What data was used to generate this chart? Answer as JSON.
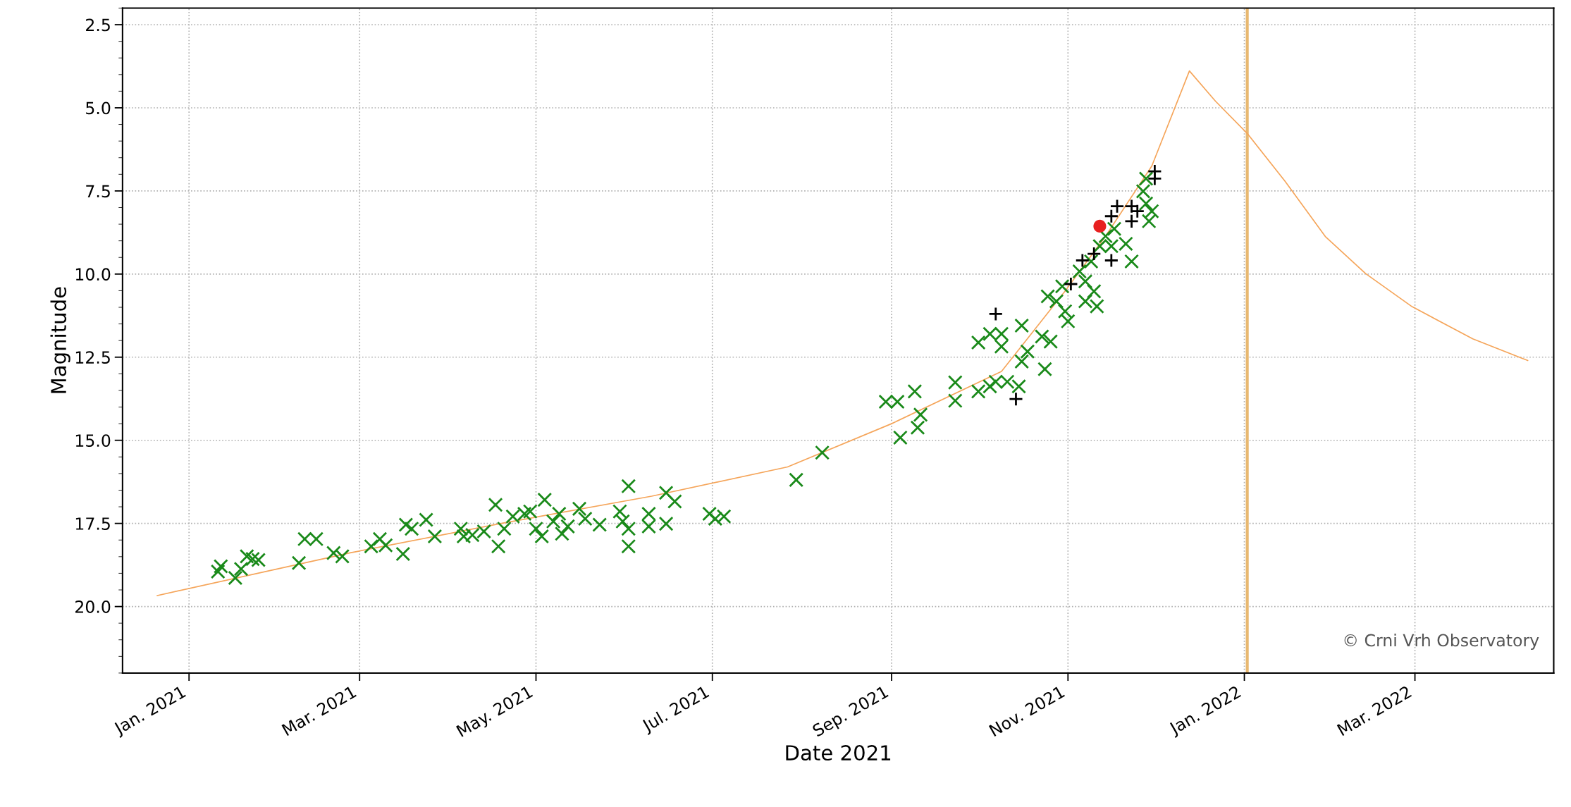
{
  "chart_data": {
    "type": "scatter",
    "xlabel": "Date 2021",
    "ylabel": "Magnitude",
    "xlim": [
      "2020-12-09",
      "2022-04-18"
    ],
    "xticks": [
      {
        "value": "2021-01-01",
        "label": "Jan. 2021"
      },
      {
        "value": "2021-03-01",
        "label": "Mar. 2021"
      },
      {
        "value": "2021-05-01",
        "label": "May. 2021"
      },
      {
        "value": "2021-07-01",
        "label": "Jul. 2021"
      },
      {
        "value": "2021-09-01",
        "label": "Sep. 2021"
      },
      {
        "value": "2021-11-01",
        "label": "Nov. 2021"
      },
      {
        "value": "2022-01-01",
        "label": "Jan. 2022"
      },
      {
        "value": "2022-03-01",
        "label": "Mar. 2022"
      }
    ],
    "ylim": [
      22,
      2
    ],
    "yticks": [
      2.5,
      {
        "value": 5,
        "label": "5.0"
      },
      7.5,
      {
        "value": 10,
        "label": "10.0"
      },
      12.5,
      {
        "value": 15,
        "label": "15.0"
      },
      17.5,
      {
        "value": 20,
        "label": "20.0"
      }
    ],
    "grid": true,
    "series": [
      {
        "type": "line",
        "color": "#f5a55a",
        "marker": "none",
        "line_style": "solid",
        "x": [
          "2020-12-21",
          "2021-02-26",
          "2021-04-19",
          "2021-06-10",
          "2021-07-27",
          "2021-09-01",
          "2021-10-09",
          "2021-10-31",
          "2021-11-14",
          "2021-11-30",
          "2021-12-13",
          "2021-12-22",
          "2022-01-02",
          "2022-01-15",
          "2022-01-29",
          "2022-02-12",
          "2022-02-28",
          "2022-03-21",
          "2022-04-09"
        ],
        "values": [
          19.67,
          18.38,
          17.5,
          16.68,
          15.8,
          14.5,
          12.93,
          10.51,
          8.86,
          6.75,
          3.89,
          4.8,
          5.77,
          7.2,
          8.87,
          9.99,
          10.98,
          11.95,
          12.6
        ]
      },
      {
        "color": "#1a8a1a",
        "marker": "cross",
        "x": [
          "2021-01-11",
          "2021-01-12",
          "2021-01-17",
          "2021-01-19",
          "2021-01-21",
          "2021-01-23",
          "2021-01-25",
          "2021-02-08",
          "2021-02-10",
          "2021-02-14",
          "2021-02-20",
          "2021-02-23",
          "2021-03-05",
          "2021-03-08",
          "2021-03-10",
          "2021-03-16",
          "2021-03-17",
          "2021-03-19",
          "2021-03-24",
          "2021-03-27",
          "2021-04-05",
          "2021-04-06",
          "2021-04-09",
          "2021-04-13",
          "2021-04-17",
          "2021-04-18",
          "2021-04-20",
          "2021-04-23",
          "2021-04-27",
          "2021-04-29",
          "2021-05-01",
          "2021-05-03",
          "2021-05-04",
          "2021-05-07",
          "2021-05-09",
          "2021-05-10",
          "2021-05-12",
          "2021-05-16",
          "2021-05-18",
          "2021-05-23",
          "2021-05-30",
          "2021-05-31",
          "2021-06-02",
          "2021-06-02",
          "2021-06-02",
          "2021-06-09",
          "2021-06-09",
          "2021-06-15",
          "2021-06-15",
          "2021-06-18",
          "2021-06-30",
          "2021-07-02",
          "2021-07-05",
          "2021-07-30",
          "2021-08-08",
          "2021-08-30",
          "2021-09-03",
          "2021-09-04",
          "2021-09-09",
          "2021-09-10",
          "2021-09-11",
          "2021-09-23",
          "2021-09-23",
          "2021-10-01",
          "2021-10-01",
          "2021-10-05",
          "2021-10-05",
          "2021-10-07",
          "2021-10-09",
          "2021-10-09",
          "2021-10-11",
          "2021-10-15",
          "2021-10-16",
          "2021-10-16",
          "2021-10-18",
          "2021-10-23",
          "2021-10-24",
          "2021-10-25",
          "2021-10-26",
          "2021-10-28",
          "2021-10-30",
          "2021-10-31",
          "2021-11-01",
          "2021-11-05",
          "2021-11-07",
          "2021-11-07",
          "2021-11-09",
          "2021-11-10",
          "2021-11-11",
          "2021-11-12",
          "2021-11-14",
          "2021-11-16",
          "2021-11-17",
          "2021-11-21",
          "2021-11-23",
          "2021-11-27",
          "2021-11-28",
          "2021-11-28",
          "2021-11-29",
          "2021-11-30"
        ],
        "values": [
          18.95,
          18.79,
          19.14,
          18.87,
          18.49,
          18.57,
          18.6,
          18.69,
          17.97,
          17.97,
          18.39,
          18.49,
          18.19,
          17.97,
          18.16,
          18.42,
          17.54,
          17.66,
          17.39,
          17.89,
          17.66,
          17.89,
          17.85,
          17.74,
          16.94,
          18.19,
          17.66,
          17.29,
          17.21,
          17.14,
          17.66,
          17.89,
          16.79,
          17.44,
          17.21,
          17.81,
          17.59,
          17.06,
          17.36,
          17.54,
          17.14,
          17.44,
          16.38,
          18.19,
          17.66,
          17.21,
          17.59,
          16.58,
          17.51,
          16.84,
          17.21,
          17.36,
          17.29,
          16.19,
          15.37,
          13.84,
          13.84,
          14.92,
          13.53,
          14.62,
          14.23,
          13.26,
          13.81,
          12.06,
          13.53,
          11.8,
          13.38,
          13.24,
          11.8,
          12.18,
          13.24,
          13.38,
          11.55,
          12.63,
          12.33,
          11.88,
          12.86,
          10.67,
          12.03,
          10.82,
          10.37,
          11.12,
          11.42,
          9.92,
          10.22,
          10.82,
          9.62,
          10.52,
          10.97,
          9.16,
          8.86,
          9.16,
          8.64,
          9.09,
          9.62,
          7.51,
          7.88,
          7.13,
          8.41,
          8.11
        ]
      },
      {
        "color": "#000000",
        "marker": "plus",
        "x": [
          "2021-10-07",
          "2021-10-14",
          "2021-11-02",
          "2021-11-06",
          "2021-11-10",
          "2021-11-16",
          "2021-11-16",
          "2021-11-18",
          "2021-11-23",
          "2021-11-23",
          "2021-11-25",
          "2021-12-01",
          "2021-12-01"
        ],
        "values": [
          11.2,
          13.76,
          10.3,
          9.59,
          9.39,
          9.59,
          8.26,
          7.96,
          8.41,
          7.96,
          8.11,
          6.91,
          7.13
        ]
      },
      {
        "color": "#e82020",
        "marker": "circle",
        "x": [
          "2021-11-12"
        ],
        "values": [
          8.56
        ]
      }
    ],
    "ref_lines": [
      {
        "axis": "x",
        "value": "2022-01-02",
        "color": "#e8b870",
        "line_style": "solid"
      }
    ],
    "annotations": [
      "© Crni Vrh Observatory"
    ]
  }
}
